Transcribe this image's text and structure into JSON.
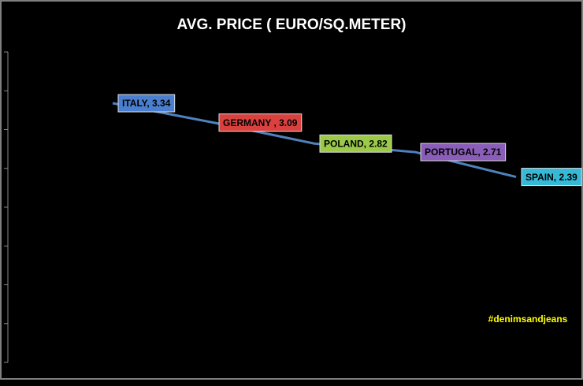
{
  "chart_data": {
    "type": "line",
    "title": "AVG. PRICE ( EURO/SQ.METER)",
    "categories": [
      null,
      null,
      null,
      null,
      null
    ],
    "values": [
      3.34,
      3.09,
      2.82,
      2.71,
      2.39
    ],
    "value_labels": [
      "ITALY, 3.34",
      "GERMANY , 3.09",
      "POLAND, 2.82",
      "PORTUGAL, 2.71",
      "SPAIN, 2.39"
    ],
    "label_colors": [
      "#4a7fcf",
      "#d9413f",
      "#9bc94a",
      "#8a5db8",
      "#35b9d6"
    ],
    "color": "#4f81bd",
    "ylim": [
      0,
      4
    ],
    "yticks": [
      0,
      0.5,
      1,
      1.5,
      2,
      2.5,
      3,
      3.5,
      4
    ],
    "annotation": "#denimsandjeans",
    "annotation_color": "#ffff00"
  }
}
